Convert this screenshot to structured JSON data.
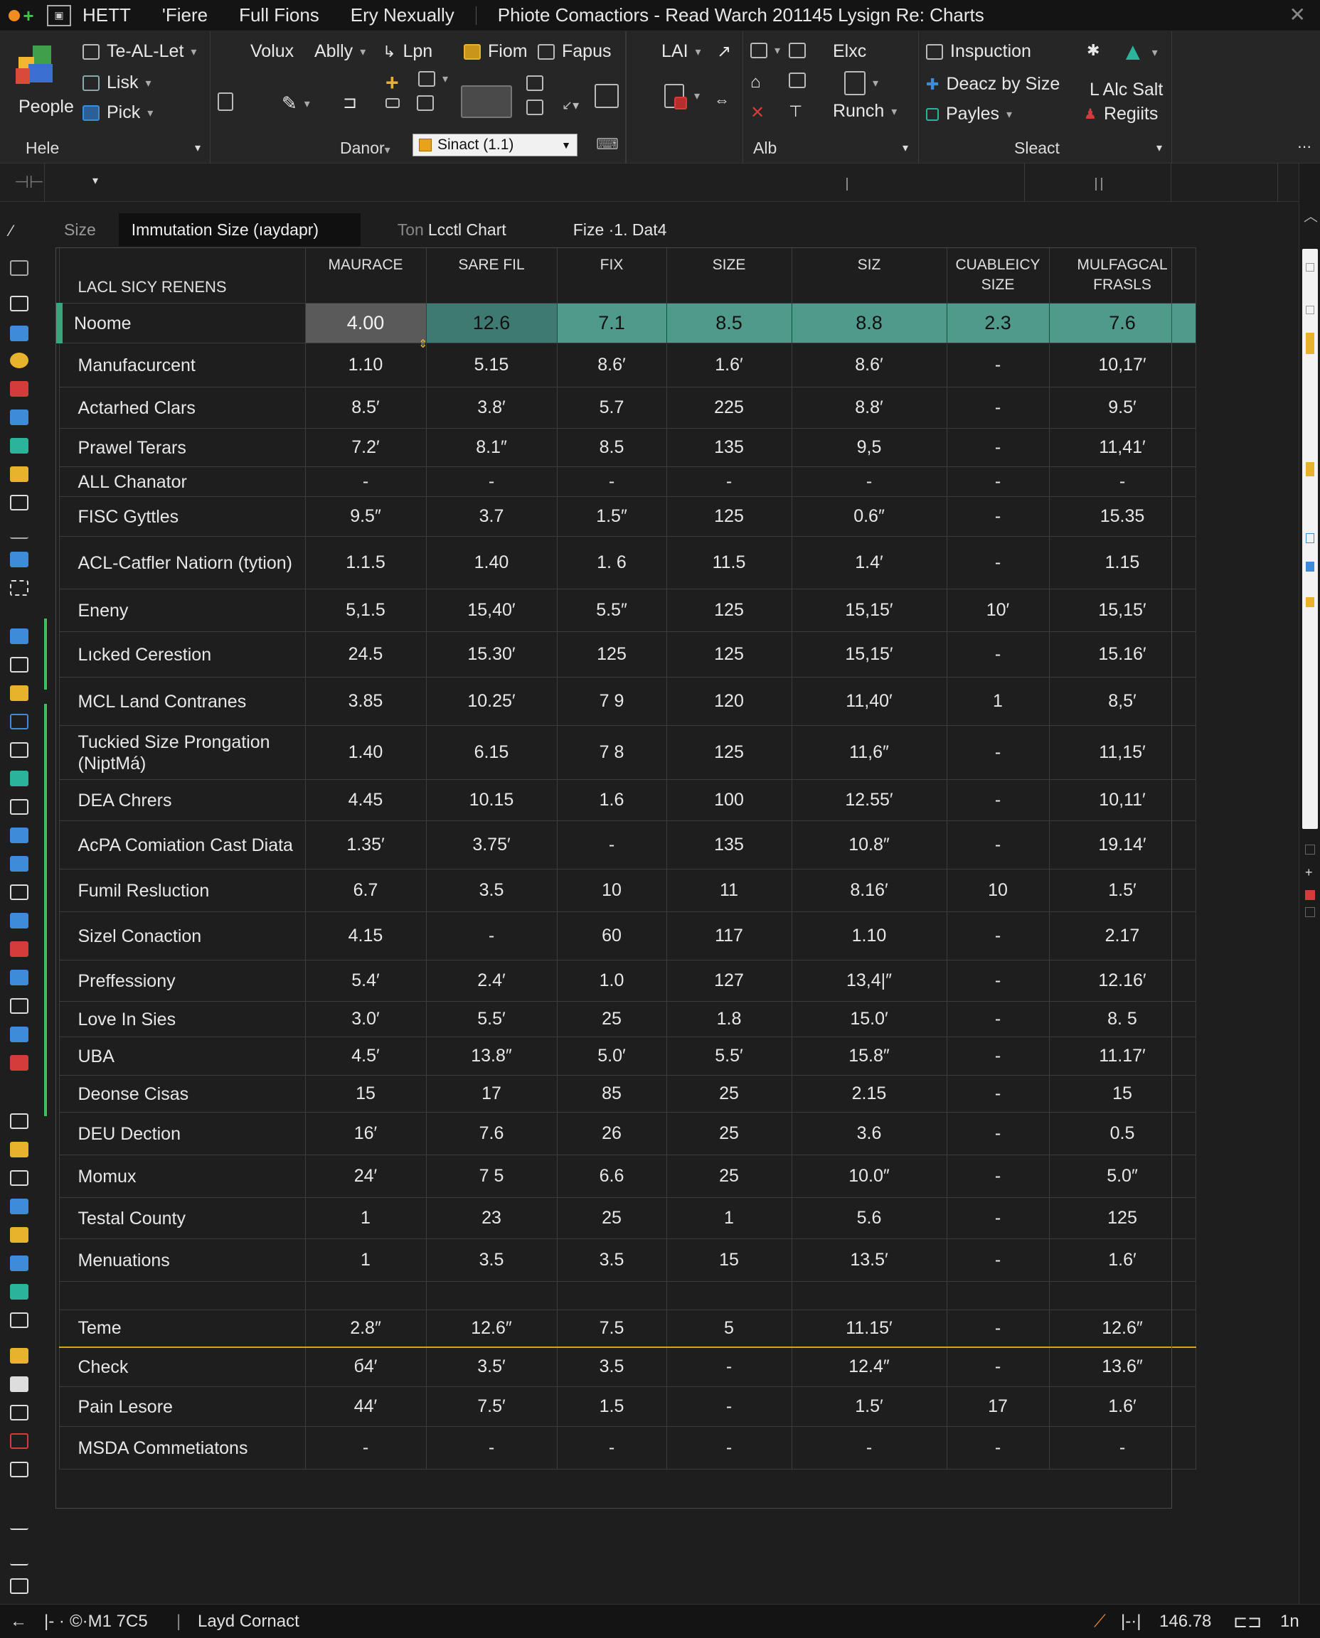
{
  "titlebar": {
    "menu": [
      "HETT",
      "'Fiere",
      "Full Fions",
      "Ery Nexually"
    ],
    "title": "Phiote   Comactiors -   Read Warch  201145  Lysign Re: Charts",
    "close": "✕"
  },
  "ribbon": {
    "people_label": "People",
    "group1": {
      "item1": "Te-AL-Let",
      "item2": "Lisk",
      "item3": "Pick"
    },
    "group1_label": "Hele",
    "group2": {
      "item1": "Volux",
      "item2": "Ablly",
      "item3": "Lpn",
      "item4": "Fiom",
      "item5": "Fapus",
      "item6": "LAI"
    },
    "group2_label": "Danor",
    "dropdown_value": "Sinact (1.1)",
    "group3": {
      "item1": "Elxc",
      "item2": "Runch"
    },
    "group3_label": "Alb",
    "group4": {
      "item1": "Inspuction",
      "item2": "Deacz by Size",
      "item3": "Payles",
      "item4": "L Alc Salt",
      "item5": "Regiits"
    },
    "group4_label": "Sleact"
  },
  "rulerbar": {
    "cell_ref": "⊣⊢",
    "marker": "▾"
  },
  "tabs": {
    "size_label": "Size",
    "active_tab": "Immutation Size (ıaydapr)",
    "tab2_prefix": "Ton",
    "tab2": "Lcctl Chart",
    "tab3": "Fize ·1. Dat4"
  },
  "table": {
    "row_header": "LACL SICY RENENS",
    "columns": [
      "MAURACE",
      "SARE FIL",
      "FIX",
      "SIZE",
      "SIZ",
      "CUABLEICY SIZE",
      "MULFAGCAL FRASLS"
    ],
    "highlight_row": {
      "label": "Noome",
      "values": [
        "4.00",
        "12.6",
        "7.1",
        "8.5",
        "8.8",
        "2.3",
        "7.6"
      ]
    },
    "rows": [
      {
        "label": "Manufacurcent",
        "values": [
          "1.10",
          "5.15",
          "8.6′",
          "1.6′",
          "8.6′",
          "-",
          "10,17′"
        ]
      },
      {
        "label": "Actarhed Clars",
        "values": [
          "8.5′",
          "3.8′",
          "5.7",
          "225",
          "8.8′",
          "-",
          "9.5′"
        ]
      },
      {
        "label": "Prawel Terars",
        "values": [
          "7.2′",
          "8.1″",
          "8.5",
          "135",
          "9,5",
          "-",
          "11,41′"
        ]
      },
      {
        "label": "ALL Chanator",
        "values": [
          "-",
          "-",
          "-",
          "-",
          "-",
          "-",
          "-"
        ]
      },
      {
        "label": "FISC Gyttles",
        "values": [
          "9.5″",
          "3.7",
          "1.5″",
          "125",
          "0.6″",
          "-",
          "15.35"
        ]
      },
      {
        "label": "ACL-Catfler Natiorn (tytion)",
        "values": [
          "1.1.5",
          "1.40",
          "1. 6",
          "11.5",
          "1.4′",
          "-",
          "1.15"
        ]
      },
      {
        "label": "Eneny",
        "values": [
          "5,1.5",
          "15,40′",
          "5.5″",
          "125",
          "15,15′",
          "10′",
          "15,15′"
        ]
      },
      {
        "label": "Lıcked Cerestion",
        "values": [
          "24.5",
          "15.30′",
          "125",
          "125",
          "15,15′",
          "-",
          "15.16′"
        ]
      },
      {
        "label": "MCL Land Contranes",
        "values": [
          "3.85",
          "10.25′",
          "7 9",
          "120",
          "11,40′",
          "1",
          "8,5′"
        ]
      },
      {
        "label": "Tuckied Size Prongation (NiptMá)",
        "values": [
          "1.40",
          "6.15",
          "7 8",
          "125",
          "11,6″",
          "-",
          "11,15′"
        ]
      },
      {
        "label": "DEA Chrers",
        "values": [
          "4.45",
          "10.15",
          "1.6",
          "100",
          "12.55′",
          "-",
          "10,11′"
        ]
      },
      {
        "label": "AcPA Comiation Cast Diata",
        "values": [
          "1.35′",
          "3.75′",
          "-",
          "135",
          "10.8″",
          "-",
          "19.14′"
        ]
      },
      {
        "label": "Fumil Resluction",
        "values": [
          "6.7",
          "3.5",
          "10",
          "11",
          "8.16′",
          "10",
          "1.5′"
        ]
      },
      {
        "label": "Sizel Conaction",
        "values": [
          "4.15",
          "-",
          "60",
          "117",
          "1.10",
          "-",
          "2.17"
        ]
      },
      {
        "label": "Preffessiony",
        "values": [
          "5.4′",
          "2.4′",
          "1.0",
          "127",
          "13,4|″",
          "-",
          "12.16′"
        ]
      },
      {
        "label": "Love In Sies",
        "values": [
          "3.0′",
          "5.5′",
          "25",
          "1.8",
          "15.0′",
          "-",
          "8. 5"
        ]
      },
      {
        "label": "UBA",
        "values": [
          "4.5′",
          "13.8″",
          "5.0′",
          "5.5′",
          "15.8″",
          "-",
          "11.17′"
        ]
      },
      {
        "label": "Deonse Cisas",
        "values": [
          "15",
          "17",
          "85",
          "25",
          "2.15",
          "-",
          "15"
        ]
      },
      {
        "label": "DEU Dection",
        "values": [
          "16′",
          "7.6",
          "26",
          "25",
          "3.6",
          "-",
          "0.5"
        ]
      },
      {
        "label": "Momux",
        "values": [
          "24′",
          "7 5",
          "6.6",
          "25",
          "10.0″",
          "-",
          "5.0″"
        ]
      },
      {
        "label": "Testal County",
        "values": [
          "1",
          "23",
          "25",
          "1",
          "5.6",
          "-",
          "125"
        ]
      },
      {
        "label": "Menuations",
        "values": [
          "1",
          "3.5",
          "3.5",
          "15",
          "13.5′",
          "-",
          "1.6′"
        ]
      }
    ],
    "bottom_rows": [
      {
        "label": "Teme",
        "values": [
          "2.8″",
          "12.6″",
          "7.5",
          "5",
          "11.15′",
          "-",
          "12.6″"
        ]
      },
      {
        "label": "Check",
        "values": [
          "б4′",
          "3.5′",
          "3.5",
          "-",
          "12.4″",
          "-",
          "13.6″"
        ]
      },
      {
        "label": "Pain Lesore",
        "values": [
          "44′",
          "7.5′",
          "1.5",
          "-",
          "1.5′",
          "17",
          "1.6′"
        ]
      },
      {
        "label": "MSDA Commetiatons",
        "values": [
          "-",
          "-",
          "-",
          "-",
          "-",
          "-",
          "-"
        ]
      }
    ]
  },
  "statusbar": {
    "back": "←",
    "left1": "|- ·",
    "left2": "©·M1 7C5",
    "center": "Layd Cornact",
    "value": "146.78",
    "right": "1n",
    "sep": "|-·|"
  },
  "colors": {
    "highlight": "#4f9a8a",
    "gold": "#d9a414",
    "accent_green": "#3aa57a"
  }
}
